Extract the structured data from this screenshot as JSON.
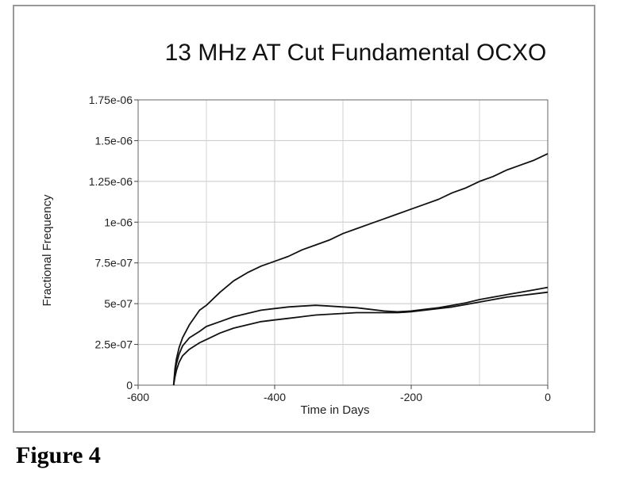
{
  "caption": "Figure 4",
  "chart_data": {
    "type": "line",
    "title": "13 MHz AT Cut Fundamental OCXO",
    "xlabel": "Time in Days",
    "ylabel": "Fractional Frequency",
    "xlim": [
      -600,
      0
    ],
    "ylim": [
      0,
      1.75e-06
    ],
    "xticks": [
      -600,
      -400,
      -200,
      0
    ],
    "xtick_labels": [
      "-600",
      "-400",
      "-200",
      "0"
    ],
    "yticks": [
      0,
      2.5e-07,
      5e-07,
      7.5e-07,
      1e-06,
      1.25e-06,
      1.5e-06,
      1.75e-06
    ],
    "ytick_labels": [
      "0",
      "2.5e-07",
      "5e-07",
      "7.5e-07",
      "1e-06",
      "1.25e-06",
      "1.5e-06",
      "1.75e-06"
    ],
    "grid": true,
    "line_color": "#111111",
    "series": [
      {
        "x": [
          -548,
          -546,
          -544,
          -540,
          -535,
          -525,
          -510,
          -500,
          -480,
          -460,
          -440,
          -420,
          -400,
          -380,
          -360,
          -340,
          -320,
          -300,
          -280,
          -260,
          -240,
          -220,
          -200,
          -180,
          -160,
          -140,
          -120,
          -100,
          -80,
          -60,
          -40,
          -20,
          0
        ],
        "values": [
          0,
          1e-07,
          1.6e-07,
          2.3e-07,
          2.9e-07,
          3.7e-07,
          4.6e-07,
          4.9e-07,
          5.7e-07,
          6.4e-07,
          6.9e-07,
          7.3e-07,
          7.6e-07,
          7.9e-07,
          8.3e-07,
          8.6e-07,
          8.9e-07,
          9.3e-07,
          9.6e-07,
          9.9e-07,
          1.02e-06,
          1.05e-06,
          1.08e-06,
          1.11e-06,
          1.14e-06,
          1.18e-06,
          1.21e-06,
          1.25e-06,
          1.28e-06,
          1.32e-06,
          1.35e-06,
          1.38e-06,
          1.42e-06
        ]
      },
      {
        "x": [
          -548,
          -546,
          -544,
          -540,
          -535,
          -525,
          -510,
          -500,
          -480,
          -460,
          -440,
          -420,
          -400,
          -380,
          -360,
          -340,
          -320,
          -300,
          -280,
          -260,
          -240,
          -220,
          -200,
          -180,
          -160,
          -140,
          -120,
          -100,
          -80,
          -60,
          -40,
          -20,
          0
        ],
        "values": [
          0,
          8e-08,
          1.3e-07,
          1.9e-07,
          2.4e-07,
          2.9e-07,
          3.3e-07,
          3.6e-07,
          3.9e-07,
          4.2e-07,
          4.4e-07,
          4.6e-07,
          4.7e-07,
          4.8e-07,
          4.85e-07,
          4.9e-07,
          4.85e-07,
          4.8e-07,
          4.75e-07,
          4.65e-07,
          4.55e-07,
          4.5e-07,
          4.55e-07,
          4.65e-07,
          4.75e-07,
          4.9e-07,
          5.05e-07,
          5.25e-07,
          5.4e-07,
          5.55e-07,
          5.7e-07,
          5.85e-07,
          6e-07
        ]
      },
      {
        "x": [
          -548,
          -546,
          -544,
          -540,
          -535,
          -525,
          -510,
          -500,
          -480,
          -460,
          -440,
          -420,
          -400,
          -380,
          -360,
          -340,
          -320,
          -300,
          -280,
          -260,
          -240,
          -220,
          -200,
          -180,
          -160,
          -140,
          -120,
          -100,
          -80,
          -60,
          -40,
          -20,
          0
        ],
        "values": [
          0,
          5e-08,
          9e-08,
          1.4e-07,
          1.8e-07,
          2.2e-07,
          2.6e-07,
          2.8e-07,
          3.2e-07,
          3.5e-07,
          3.7e-07,
          3.9e-07,
          4e-07,
          4.1e-07,
          4.2e-07,
          4.3e-07,
          4.35e-07,
          4.4e-07,
          4.45e-07,
          4.45e-07,
          4.45e-07,
          4.45e-07,
          4.5e-07,
          4.6e-07,
          4.7e-07,
          4.8e-07,
          4.95e-07,
          5.1e-07,
          5.25e-07,
          5.4e-07,
          5.5e-07,
          5.6e-07,
          5.7e-07
        ]
      }
    ]
  }
}
